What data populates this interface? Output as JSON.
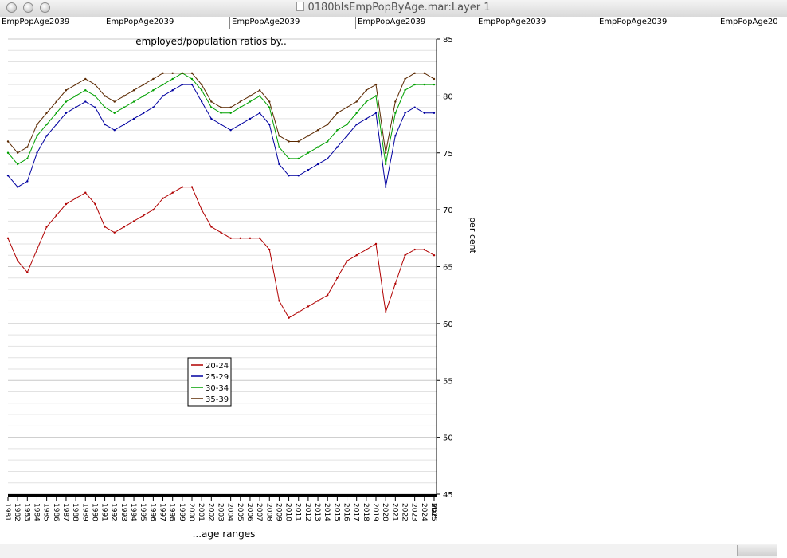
{
  "window": {
    "title": "0180blsEmpPopByAge.mar:Layer 1"
  },
  "tabs": [
    "EmpPopAge2039",
    "EmpPopAge2039",
    "EmpPopAge2039",
    "EmpPopAge2039",
    "EmpPopAge2039",
    "EmpPopAge2039",
    "EmpPopAge2039"
  ],
  "chart_data": {
    "type": "line",
    "title": "employed/population ratios by..",
    "xlabel": "...age ranges",
    "ylabel": "per cent",
    "ylim": [
      45,
      85
    ],
    "y_ticks": [
      45,
      50,
      55,
      60,
      65,
      70,
      75,
      80,
      85
    ],
    "y_axis_side": "right",
    "grid": true,
    "legend_position": "lower-left",
    "x_tick_labels": [
      "1981",
      "1982",
      "1983",
      "1984",
      "1985",
      "1986",
      "1987",
      "1988",
      "1989",
      "1990",
      "1991",
      "1992",
      "1993",
      "1994",
      "1995",
      "1996",
      "1997",
      "1998",
      "1999",
      "2000",
      "2001",
      "2002",
      "2003",
      "2004",
      "2005",
      "2006",
      "2007",
      "2008",
      "2009",
      "2010",
      "2011",
      "2012",
      "2013",
      "2014",
      "2015",
      "2016",
      "2017",
      "2018",
      "2019",
      "2020",
      "2021",
      "2022",
      "2023",
      "2024",
      "2025",
      "Mar"
    ],
    "x": [
      1981,
      1982,
      1983,
      1984,
      1985,
      1986,
      1987,
      1988,
      1989,
      1990,
      1991,
      1992,
      1993,
      1994,
      1995,
      1996,
      1997,
      1998,
      1999,
      2000,
      2001,
      2002,
      2003,
      2004,
      2005,
      2006,
      2007,
      2008,
      2009,
      2010,
      2011,
      2012,
      2013,
      2014,
      2015,
      2016,
      2017,
      2018,
      2019,
      2020,
      2021,
      2022,
      2023,
      2024,
      2025
    ],
    "series": [
      {
        "name": "20-24",
        "color": "#b00000",
        "values": [
          67.5,
          65.5,
          64.5,
          66.5,
          68.5,
          69.5,
          70.5,
          71.0,
          71.5,
          70.5,
          68.5,
          68.0,
          68.5,
          69.0,
          69.5,
          70.0,
          71.0,
          71.5,
          72.0,
          72.0,
          70.0,
          68.5,
          68.0,
          67.5,
          67.5,
          67.5,
          67.5,
          66.5,
          62.0,
          60.5,
          61.0,
          61.5,
          62.0,
          62.5,
          64.0,
          65.5,
          66.0,
          66.5,
          67.0,
          61.0,
          63.5,
          66.0,
          66.5,
          66.5,
          66.0
        ]
      },
      {
        "name": "25-29",
        "color": "#0000a0",
        "values": [
          73.0,
          72.0,
          72.5,
          75.0,
          76.5,
          77.5,
          78.5,
          79.0,
          79.5,
          79.0,
          77.5,
          77.0,
          77.5,
          78.0,
          78.5,
          79.0,
          80.0,
          80.5,
          81.0,
          81.0,
          79.5,
          78.0,
          77.5,
          77.0,
          77.5,
          78.0,
          78.5,
          77.5,
          74.0,
          73.0,
          73.0,
          73.5,
          74.0,
          74.5,
          75.5,
          76.5,
          77.5,
          78.0,
          78.5,
          72.0,
          76.5,
          78.5,
          79.0,
          78.5,
          78.5
        ]
      },
      {
        "name": "30-34",
        "color": "#00a000",
        "values": [
          75.0,
          74.0,
          74.5,
          76.5,
          77.5,
          78.5,
          79.5,
          80.0,
          80.5,
          80.0,
          79.0,
          78.5,
          79.0,
          79.5,
          80.0,
          80.5,
          81.0,
          81.5,
          82.0,
          81.5,
          80.5,
          79.0,
          78.5,
          78.5,
          79.0,
          79.5,
          80.0,
          79.0,
          75.5,
          74.5,
          74.5,
          75.0,
          75.5,
          76.0,
          77.0,
          77.5,
          78.5,
          79.5,
          80.0,
          74.0,
          78.5,
          80.5,
          81.0,
          81.0,
          81.0
        ]
      },
      {
        "name": "35-39",
        "color": "#5a2800",
        "values": [
          76.0,
          75.0,
          75.5,
          77.5,
          78.5,
          79.5,
          80.5,
          81.0,
          81.5,
          81.0,
          80.0,
          79.5,
          80.0,
          80.5,
          81.0,
          81.5,
          82.0,
          82.0,
          82.0,
          82.0,
          81.0,
          79.5,
          79.0,
          79.0,
          79.5,
          80.0,
          80.5,
          79.5,
          76.5,
          76.0,
          76.0,
          76.5,
          77.0,
          77.5,
          78.5,
          79.0,
          79.5,
          80.5,
          81.0,
          75.0,
          79.5,
          81.5,
          82.0,
          82.0,
          81.5
        ]
      }
    ]
  }
}
